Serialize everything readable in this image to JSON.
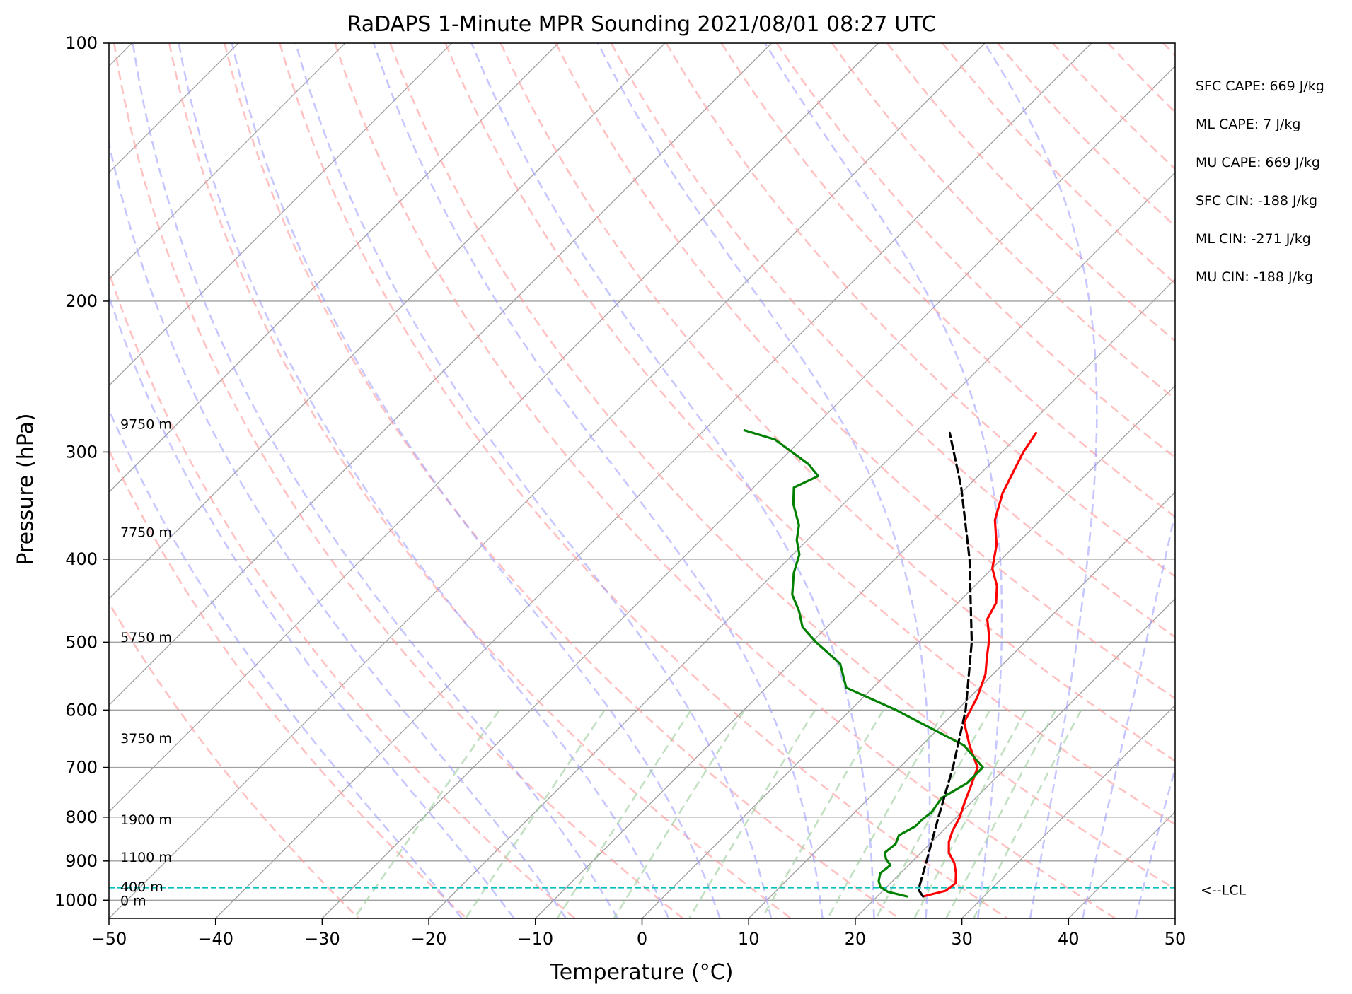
{
  "chart_data": {
    "type": "skew-t log-p",
    "title": "RaDAPS 1-Minute MPR Sounding 2021/08/01 08:27 UTC",
    "xlabel": "Temperature (°C)",
    "ylabel": "Pressure (hPa)",
    "xlim": [
      -50,
      50
    ],
    "ylim": [
      1050,
      100
    ],
    "y_scale": "log",
    "x_ticks": [
      -50,
      -40,
      -30,
      -20,
      -10,
      0,
      10,
      20,
      30,
      40,
      50
    ],
    "x_tick_labels": [
      "−50",
      "−40",
      "−30",
      "−20",
      "−10",
      "0",
      "10",
      "20",
      "30",
      "40",
      "50"
    ],
    "y_ticks": [
      100,
      200,
      300,
      400,
      500,
      600,
      700,
      800,
      900,
      1000
    ],
    "y_tick_labels": [
      "100",
      "200",
      "300",
      "400",
      "500",
      "600",
      "700",
      "800",
      "900",
      "1000"
    ],
    "grid": true,
    "colors": {
      "temperature": "#ff0000",
      "dewpoint": "#008000",
      "parcel": "#000000",
      "dry_adiabats": "#ff9999",
      "moist_adiabats": "#9999ff",
      "mixing_ratio": "#99cc99",
      "isotherms_isobars": "#a0a0a0",
      "lcl_line": "#00bfbf"
    },
    "series": [
      {
        "id": "temperature",
        "points": [
          {
            "p": 990,
            "t": 24.3
          },
          {
            "p": 975,
            "t": 25.9
          },
          {
            "p": 955,
            "t": 26.1
          },
          {
            "p": 930,
            "t": 25.2
          },
          {
            "p": 905,
            "t": 24.1
          },
          {
            "p": 880,
            "t": 22.6
          },
          {
            "p": 855,
            "t": 21.6
          },
          {
            "p": 830,
            "t": 20.9
          },
          {
            "p": 800,
            "t": 20.3
          },
          {
            "p": 770,
            "t": 19.4
          },
          {
            "p": 735,
            "t": 18.4
          },
          {
            "p": 700,
            "t": 17.3
          },
          {
            "p": 660,
            "t": 14.5
          },
          {
            "p": 620,
            "t": 11.8
          },
          {
            "p": 580,
            "t": 10.7
          },
          {
            "p": 545,
            "t": 9.3
          },
          {
            "p": 520,
            "t": 7.8
          },
          {
            "p": 495,
            "t": 6.3
          },
          {
            "p": 470,
            "t": 4.3
          },
          {
            "p": 450,
            "t": 3.6
          },
          {
            "p": 430,
            "t": 2.1
          },
          {
            "p": 410,
            "t": 0.0
          },
          {
            "p": 385,
            "t": -1.8
          },
          {
            "p": 360,
            "t": -4.3
          },
          {
            "p": 335,
            "t": -6.1
          },
          {
            "p": 300,
            "t": -8.0
          },
          {
            "p": 285,
            "t": -8.6
          }
        ]
      },
      {
        "id": "dewpoint",
        "points": [
          {
            "p": 990,
            "t": 22.8
          },
          {
            "p": 978,
            "t": 20.6
          },
          {
            "p": 965,
            "t": 19.4
          },
          {
            "p": 950,
            "t": 18.7
          },
          {
            "p": 930,
            "t": 18.1
          },
          {
            "p": 910,
            "t": 18.3
          },
          {
            "p": 895,
            "t": 17.3
          },
          {
            "p": 880,
            "t": 16.6
          },
          {
            "p": 860,
            "t": 16.8
          },
          {
            "p": 840,
            "t": 16.3
          },
          {
            "p": 820,
            "t": 17.0
          },
          {
            "p": 805,
            "t": 17.0
          },
          {
            "p": 790,
            "t": 17.2
          },
          {
            "p": 760,
            "t": 16.8
          },
          {
            "p": 730,
            "t": 17.8
          },
          {
            "p": 700,
            "t": 17.8
          },
          {
            "p": 660,
            "t": 14.0
          },
          {
            "p": 620,
            "t": 7.6
          },
          {
            "p": 600,
            "t": 4.3
          },
          {
            "p": 565,
            "t": -2.5
          },
          {
            "p": 530,
            "t": -5.3
          },
          {
            "p": 500,
            "t": -9.6
          },
          {
            "p": 480,
            "t": -12.3
          },
          {
            "p": 460,
            "t": -14.1
          },
          {
            "p": 440,
            "t": -16.3
          },
          {
            "p": 415,
            "t": -18.2
          },
          {
            "p": 395,
            "t": -19.4
          },
          {
            "p": 380,
            "t": -21.0
          },
          {
            "p": 365,
            "t": -22.2
          },
          {
            "p": 345,
            "t": -24.7
          },
          {
            "p": 330,
            "t": -26.2
          },
          {
            "p": 320,
            "t": -25.0
          },
          {
            "p": 310,
            "t": -27.0
          },
          {
            "p": 290,
            "t": -32.5
          },
          {
            "p": 283,
            "t": -36.2
          }
        ]
      },
      {
        "id": "parcel",
        "points": [
          {
            "p": 990,
            "t": 24.3
          },
          {
            "p": 975,
            "t": 23.4
          },
          {
            "p": 967,
            "t": 23.1
          },
          {
            "p": 900,
            "t": 21.3
          },
          {
            "p": 800,
            "t": 18.3
          },
          {
            "p": 700,
            "t": 15.0
          },
          {
            "p": 600,
            "t": 10.8
          },
          {
            "p": 500,
            "t": 5.0
          },
          {
            "p": 400,
            "t": -3.0
          },
          {
            "p": 330,
            "t": -10.5
          },
          {
            "p": 285,
            "t": -16.7
          }
        ]
      }
    ],
    "lcl": {
      "p": 967,
      "label": "<--LCL"
    },
    "height_labels": [
      {
        "p": 278,
        "text": "9750 m"
      },
      {
        "p": 372,
        "text": "7750 m"
      },
      {
        "p": 493,
        "text": "5750 m"
      },
      {
        "p": 647,
        "text": "3750 m"
      },
      {
        "p": 805,
        "text": "1900 m"
      },
      {
        "p": 890,
        "text": "1100 m"
      },
      {
        "p": 964,
        "text": "400 m"
      },
      {
        "p": 1000,
        "text": "0 m"
      }
    ],
    "annotations": [
      "SFC CAPE: 669 J/kg",
      "ML CAPE: 7 J/kg",
      "MU CAPE: 669 J/kg",
      "SFC CIN: -188 J/kg",
      "ML CIN: -271 J/kg",
      "MU CIN: -188 J/kg"
    ]
  }
}
